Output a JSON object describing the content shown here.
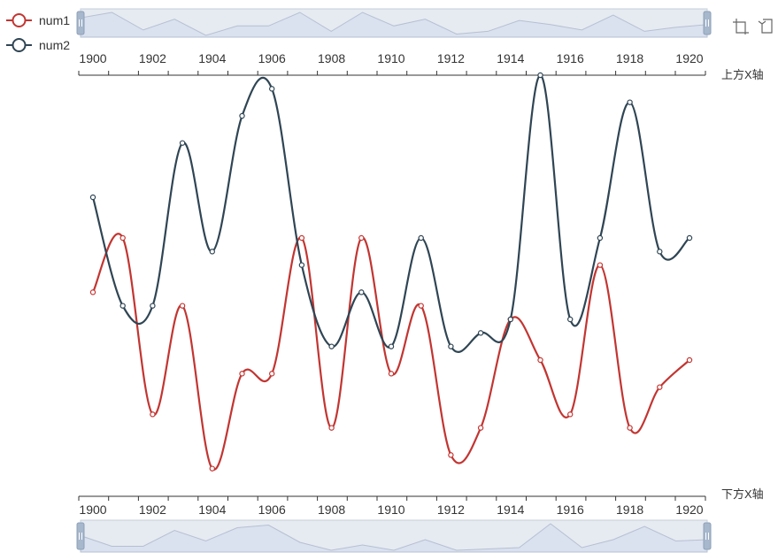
{
  "chart_data": {
    "type": "line",
    "smooth": true,
    "categories": [
      "1900",
      "1901",
      "1902",
      "1903",
      "1904",
      "1905",
      "1906",
      "1907",
      "1908",
      "1909",
      "1910",
      "1911",
      "1912",
      "1913",
      "1914",
      "1915",
      "1916",
      "1917",
      "1918",
      "1919",
      "1920"
    ],
    "tick_labels": [
      "1900",
      "1902",
      "1904",
      "1906",
      "1908",
      "1910",
      "1912",
      "1914",
      "1916",
      "1918",
      "1920"
    ],
    "axes": {
      "top_name": "上方X轴",
      "bottom_name": "下方X轴"
    },
    "ylim": [
      0,
      30
    ],
    "series": [
      {
        "name": "num1",
        "color": "#c23531",
        "values": [
          14,
          18,
          5,
          13,
          1,
          8,
          8,
          18,
          4,
          18,
          8,
          13,
          2,
          4,
          12,
          9,
          5,
          16,
          4,
          7,
          9
        ]
      },
      {
        "name": "num2",
        "color": "#2f4554",
        "values": [
          21,
          13,
          13,
          25,
          17,
          27,
          29,
          16,
          10,
          14,
          10,
          18,
          10,
          11,
          12,
          30,
          12,
          18,
          28,
          17,
          18
        ]
      }
    ],
    "shadow_color": "#d2dbee",
    "slider_fill": "#c8d2e1"
  },
  "toolbox": {
    "zoom_icon": "data-zoom-icon",
    "reset_icon": "zoom-reset-icon"
  }
}
